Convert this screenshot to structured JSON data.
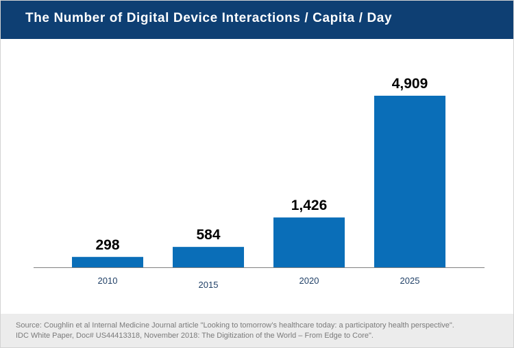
{
  "title": "The Number of Digital Device Interactions / Capita / Day",
  "colors": {
    "header": "#0e3f73",
    "bar": "#0a6eb8",
    "axis": "#7f7f7f",
    "tick": "#1f3f66",
    "value": "#000000"
  },
  "chart_data": {
    "type": "bar",
    "title": "The Number of Digital Device Interactions / Capita / Day",
    "categories": [
      "2010",
      "2015",
      "2020",
      "2025"
    ],
    "values": [
      298,
      584,
      1426,
      4909
    ],
    "value_labels": [
      "298",
      "584",
      "1,426",
      "4,909"
    ],
    "xlabel": "",
    "ylabel": "",
    "ylim": [
      0,
      4909
    ],
    "grid": false,
    "legend": "none"
  },
  "footer": {
    "source_line_1": "Source: Coughlin et al Internal Medicine Journal article \"Looking to tomorrow’s healthcare today: a participatory health perspective\".",
    "source_line_2": "IDC White Paper, Doc# US44413318, November 2018: The Digitization of the World – From Edge to Core\"."
  }
}
